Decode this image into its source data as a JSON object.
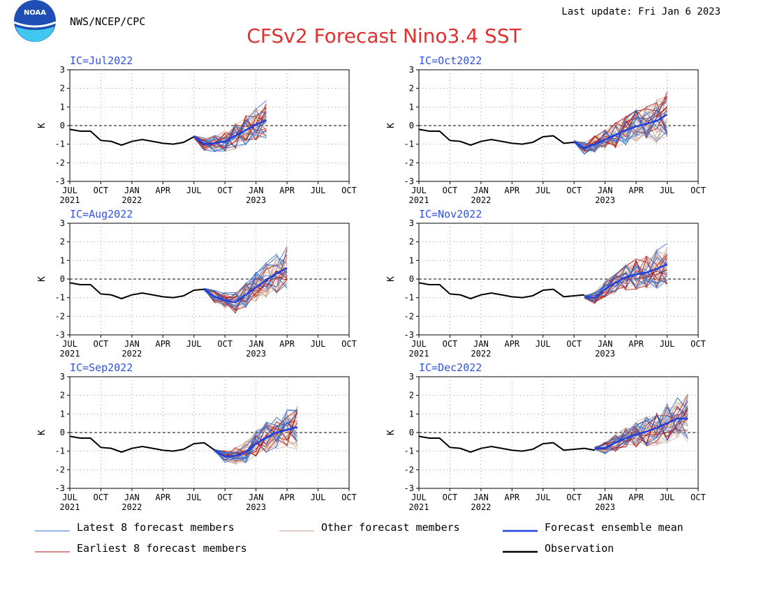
{
  "header": {
    "agency": "NWS/NCEP/CPC",
    "last_update": "Last update: Fri Jan 6 2023",
    "title": "CFSv2 Forecast Nino3.4 SST",
    "logo_text": "NOAA"
  },
  "colors": {
    "title": "#e03030",
    "panel_title": "#3050e0",
    "latest": "#2a6fd6",
    "earliest": "#b01010",
    "other": "#c79a86",
    "mean": "#1f3fe0",
    "obs": "#000000",
    "zero_line": "#000000",
    "grid": "#9a9a9a"
  },
  "legend": [
    {
      "key": "latest",
      "label": "Latest 8 forecast members"
    },
    {
      "key": "other",
      "label": "Other forecast members"
    },
    {
      "key": "mean",
      "label": "Forecast ensemble mean"
    },
    {
      "key": "earliest",
      "label": "Earliest 8 forecast members"
    },
    {
      "key": "obs",
      "label": "Observation"
    }
  ],
  "chart_data": {
    "type": "line",
    "ylabel": "K",
    "ylim": [
      -3,
      3
    ],
    "yticks": [
      -3,
      -2,
      -1,
      0,
      1,
      2,
      3
    ],
    "x_ticks": [
      "JUL",
      "OCT",
      "JAN",
      "APR",
      "JUL",
      "OCT",
      "JAN",
      "APR",
      "JUL",
      "OCT"
    ],
    "x_year_labels": [
      {
        "month_index": 0,
        "label": "2021"
      },
      {
        "month_index": 6,
        "label": "2022"
      },
      {
        "month_index": 18,
        "label": "2023"
      }
    ],
    "x_unit": "months since JUL 2021",
    "observation": [
      -0.2,
      -0.3,
      -0.3,
      -0.8,
      -0.85,
      -1.05,
      -0.85,
      -0.75,
      -0.85,
      -0.95,
      -1.0,
      -0.9,
      -0.6,
      -0.55,
      -0.95,
      -0.9,
      -0.85,
      -0.95
    ],
    "panels": [
      {
        "ic": "IC=Jul2022",
        "start": 12,
        "mean": [
          -0.6,
          -1.0,
          -0.95,
          -0.85,
          -0.55,
          -0.25,
          0.05,
          0.3
        ]
      },
      {
        "ic": "IC=Oct2022",
        "start": 15,
        "mean": [
          -0.85,
          -1.2,
          -1.0,
          -0.75,
          -0.5,
          -0.25,
          -0.05,
          0.1,
          0.25,
          0.6
        ]
      },
      {
        "ic": "IC=Aug2022",
        "start": 13,
        "mean": [
          -0.55,
          -0.95,
          -1.15,
          -1.25,
          -0.85,
          -0.45,
          -0.05,
          0.3,
          0.6
        ]
      },
      {
        "ic": "IC=Nov2022",
        "start": 16,
        "mean": [
          -0.95,
          -1.0,
          -0.55,
          -0.2,
          0.1,
          0.25,
          0.35,
          0.55,
          0.8
        ]
      },
      {
        "ic": "IC=Sep2022",
        "start": 14,
        "mean": [
          -0.95,
          -1.3,
          -1.25,
          -1.05,
          -0.6,
          -0.25,
          0.0,
          0.15,
          0.3
        ]
      },
      {
        "ic": "IC=Dec2022",
        "start": 17,
        "mean": [
          -0.85,
          -0.85,
          -0.55,
          -0.3,
          -0.1,
          0.05,
          0.25,
          0.5,
          0.75,
          0.75
        ]
      }
    ]
  }
}
